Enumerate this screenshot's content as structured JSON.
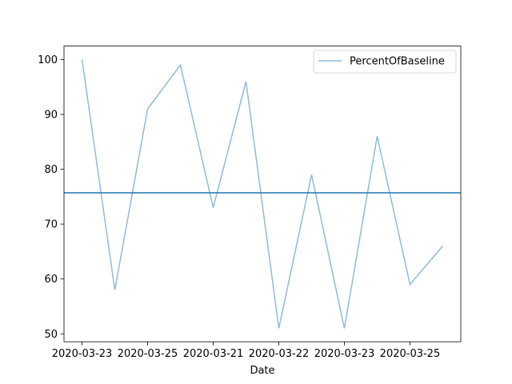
{
  "chart_data": {
    "type": "line",
    "xlabel": "Date",
    "ylabel": "",
    "x_tick_labels": [
      "2020-03-23",
      "2020-03-25",
      "2020-03-21",
      "2020-03-22",
      "2020-03-23",
      "2020-03-25"
    ],
    "series": [
      {
        "name": "PercentOfBaseline",
        "values": [
          100,
          58,
          91,
          99,
          73,
          96,
          51,
          79,
          51,
          86,
          59,
          66
        ],
        "color": "#1f77b4",
        "opacity": 0.5
      }
    ],
    "reference_line": {
      "value": 75.7,
      "color": "#1f77b4"
    },
    "ylim": [
      48.55,
      102.45
    ],
    "yticks": [
      50,
      60,
      70,
      80,
      90,
      100
    ],
    "grid": false,
    "legend": "top-right"
  }
}
